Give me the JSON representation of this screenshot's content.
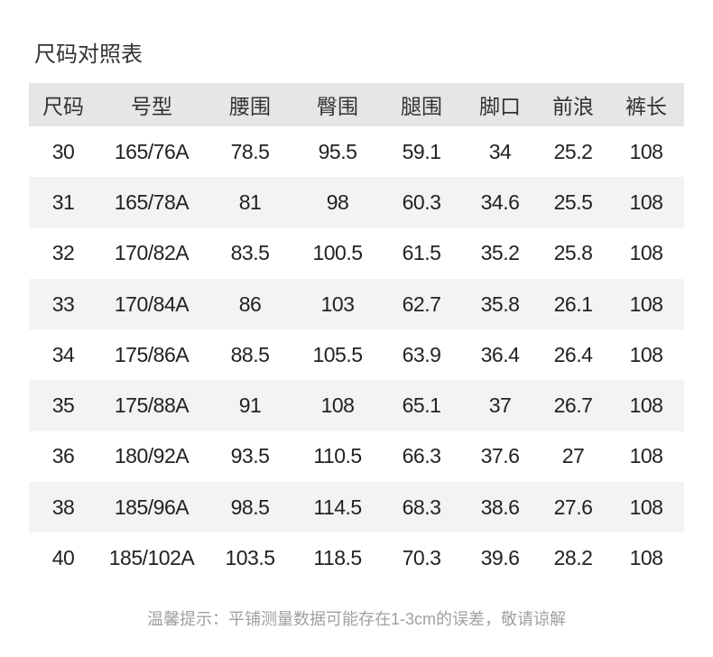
{
  "title": "尺码对照表",
  "table": {
    "headers": [
      "尺码",
      "号型",
      "腰围",
      "臀围",
      "腿围",
      "脚口",
      "前浪",
      "裤长"
    ],
    "rows": [
      [
        "30",
        "165/76A",
        "78.5",
        "95.5",
        "59.1",
        "34",
        "25.2",
        "108"
      ],
      [
        "31",
        "165/78A",
        "81",
        "98",
        "60.3",
        "34.6",
        "25.5",
        "108"
      ],
      [
        "32",
        "170/82A",
        "83.5",
        "100.5",
        "61.5",
        "35.2",
        "25.8",
        "108"
      ],
      [
        "33",
        "170/84A",
        "86",
        "103",
        "62.7",
        "35.8",
        "26.1",
        "108"
      ],
      [
        "34",
        "175/86A",
        "88.5",
        "105.5",
        "63.9",
        "36.4",
        "26.4",
        "108"
      ],
      [
        "35",
        "175/88A",
        "91",
        "108",
        "65.1",
        "37",
        "26.7",
        "108"
      ],
      [
        "36",
        "180/92A",
        "93.5",
        "110.5",
        "66.3",
        "37.6",
        "27",
        "108"
      ],
      [
        "38",
        "185/96A",
        "98.5",
        "114.5",
        "68.3",
        "38.6",
        "27.6",
        "108"
      ],
      [
        "40",
        "185/102A",
        "103.5",
        "118.5",
        "70.3",
        "39.6",
        "28.2",
        "108"
      ]
    ]
  },
  "note": "温馨提示：平铺测量数据可能存在1-3cm的误差，敬请谅解"
}
